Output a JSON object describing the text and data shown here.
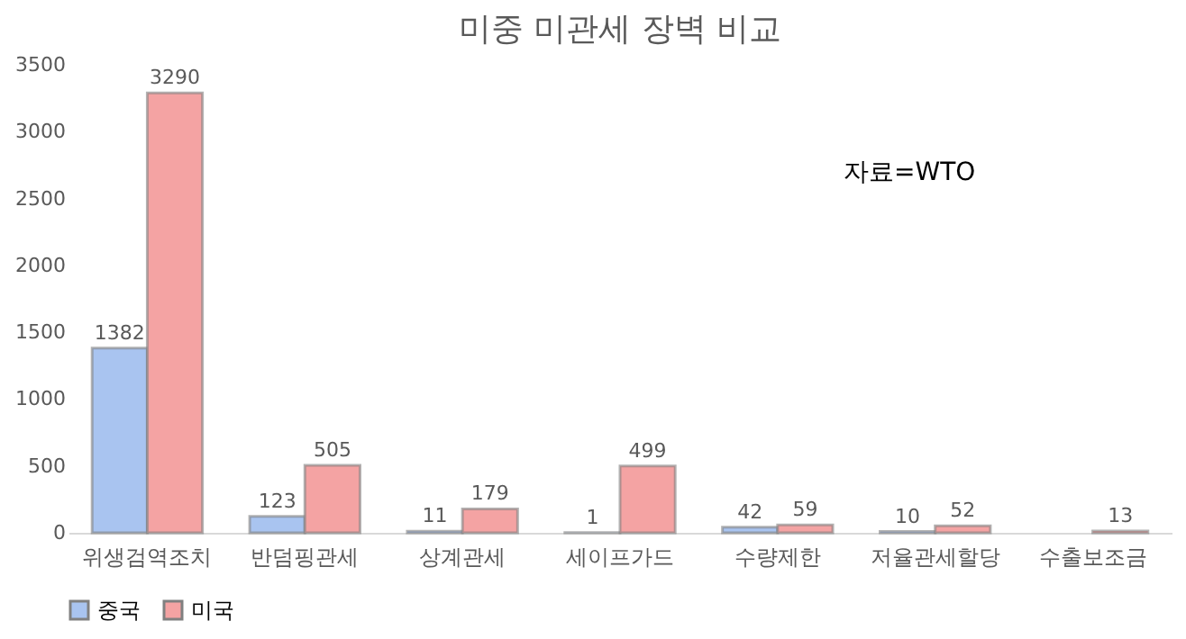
{
  "chart_data": {
    "type": "bar",
    "title": "미중 미관세 장벽 비교",
    "categories": [
      "위생검역조치",
      "반덤핑관세",
      "상계관세",
      "세이프가드",
      "수량제한",
      "저율관세할당",
      "수출보조금"
    ],
    "series": [
      {
        "name": "중국",
        "color": "#a9c4f0",
        "values": [
          1382,
          123,
          11,
          1,
          42,
          10,
          null
        ]
      },
      {
        "name": "미국",
        "color": "#f4a3a3",
        "values": [
          3290,
          505,
          179,
          499,
          59,
          52,
          13
        ]
      }
    ],
    "ylim": [
      0,
      3500
    ],
    "yticks": [
      0,
      500,
      1000,
      1500,
      2000,
      2500,
      3000,
      3500
    ],
    "grid": false,
    "legend": "bottom",
    "data_labels": true,
    "annotations": [
      "자료=WTO"
    ]
  }
}
